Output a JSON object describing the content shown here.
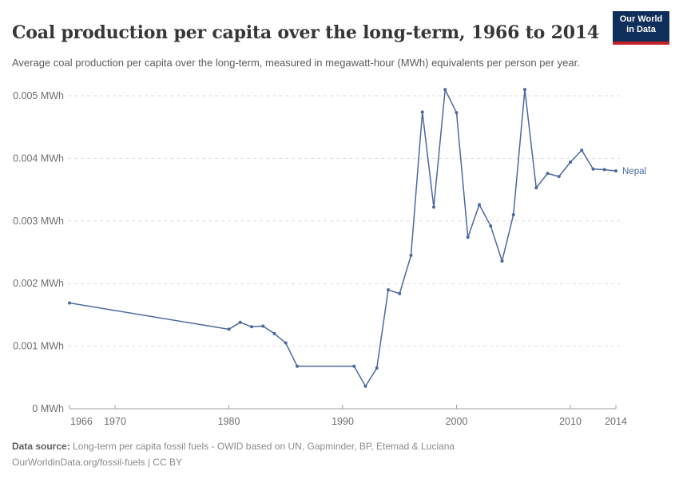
{
  "header": {
    "title": "Coal production per capita over the long-term, 1966 to 2014",
    "subtitle": "Average coal production per capita over the long-term, measured in megawatt-hour (MWh) equivalents per person per year.",
    "logo": {
      "line1": "Our World",
      "line2": "in Data"
    }
  },
  "chart_data": {
    "type": "line",
    "title": "Coal production per capita over the long-term, 1966 to 2014",
    "unit": "MWh",
    "xlabel": "",
    "ylabel": "MWh",
    "xlim": [
      1966,
      2014
    ],
    "ylim": [
      0,
      0.0052
    ],
    "grid": "horizontal-dashed",
    "legend_position": "end-of-line-label",
    "xticks": [
      1966,
      1970,
      1980,
      1990,
      2000,
      2010,
      2014
    ],
    "yticks": [
      {
        "v": 0,
        "label": "0 MWh"
      },
      {
        "v": 0.001,
        "label": "0.001 MWh"
      },
      {
        "v": 0.002,
        "label": "0.002 MWh"
      },
      {
        "v": 0.003,
        "label": "0.003 MWh"
      },
      {
        "v": 0.004,
        "label": "0.004 MWh"
      },
      {
        "v": 0.005,
        "label": "0.005 MWh"
      }
    ],
    "series": [
      {
        "name": "Nepal",
        "color": "#4b69a0",
        "points": [
          [
            1966,
            0.00169
          ],
          [
            1980,
            0.00127
          ],
          [
            1981,
            0.00138
          ],
          [
            1982,
            0.00131
          ],
          [
            1983,
            0.00132
          ],
          [
            1984,
            0.0012
          ],
          [
            1985,
            0.00105
          ],
          [
            1986,
            0.00068
          ],
          [
            1991,
            0.00068
          ],
          [
            1992,
            0.00036
          ],
          [
            1993,
            0.00065
          ],
          [
            1994,
            0.0019
          ],
          [
            1995,
            0.00184
          ],
          [
            1996,
            0.00245
          ],
          [
            1997,
            0.00474
          ],
          [
            1998,
            0.00322
          ],
          [
            1999,
            0.0051
          ],
          [
            2000,
            0.00473
          ],
          [
            2001,
            0.00274
          ],
          [
            2002,
            0.00326
          ],
          [
            2003,
            0.00292
          ],
          [
            2004,
            0.00236
          ],
          [
            2005,
            0.0031
          ],
          [
            2006,
            0.0051
          ],
          [
            2007,
            0.00353
          ],
          [
            2008,
            0.00376
          ],
          [
            2009,
            0.00371
          ],
          [
            2010,
            0.00394
          ],
          [
            2011,
            0.00413
          ],
          [
            2012,
            0.00383
          ],
          [
            2013,
            0.00382
          ],
          [
            2014,
            0.0038
          ]
        ]
      }
    ]
  },
  "footer": {
    "datasource_label": "Data source:",
    "datasource_text": " Long-term per capita fossil fuels - OWID based on UN, Gapminder, BP, Etemad & Luciana",
    "license_line": "OurWorldinData.org/fossil-fuels | CC BY"
  },
  "colors": {
    "line": "#4b69a0",
    "grid": "#dddddd",
    "axis": "#a1a1a1",
    "axis_text": "#6e6e6e",
    "title_text": "#373737",
    "subtitle_text": "#5b5b5b",
    "logo_bg": "#0f2e5a",
    "logo_red": "#c4222b"
  }
}
